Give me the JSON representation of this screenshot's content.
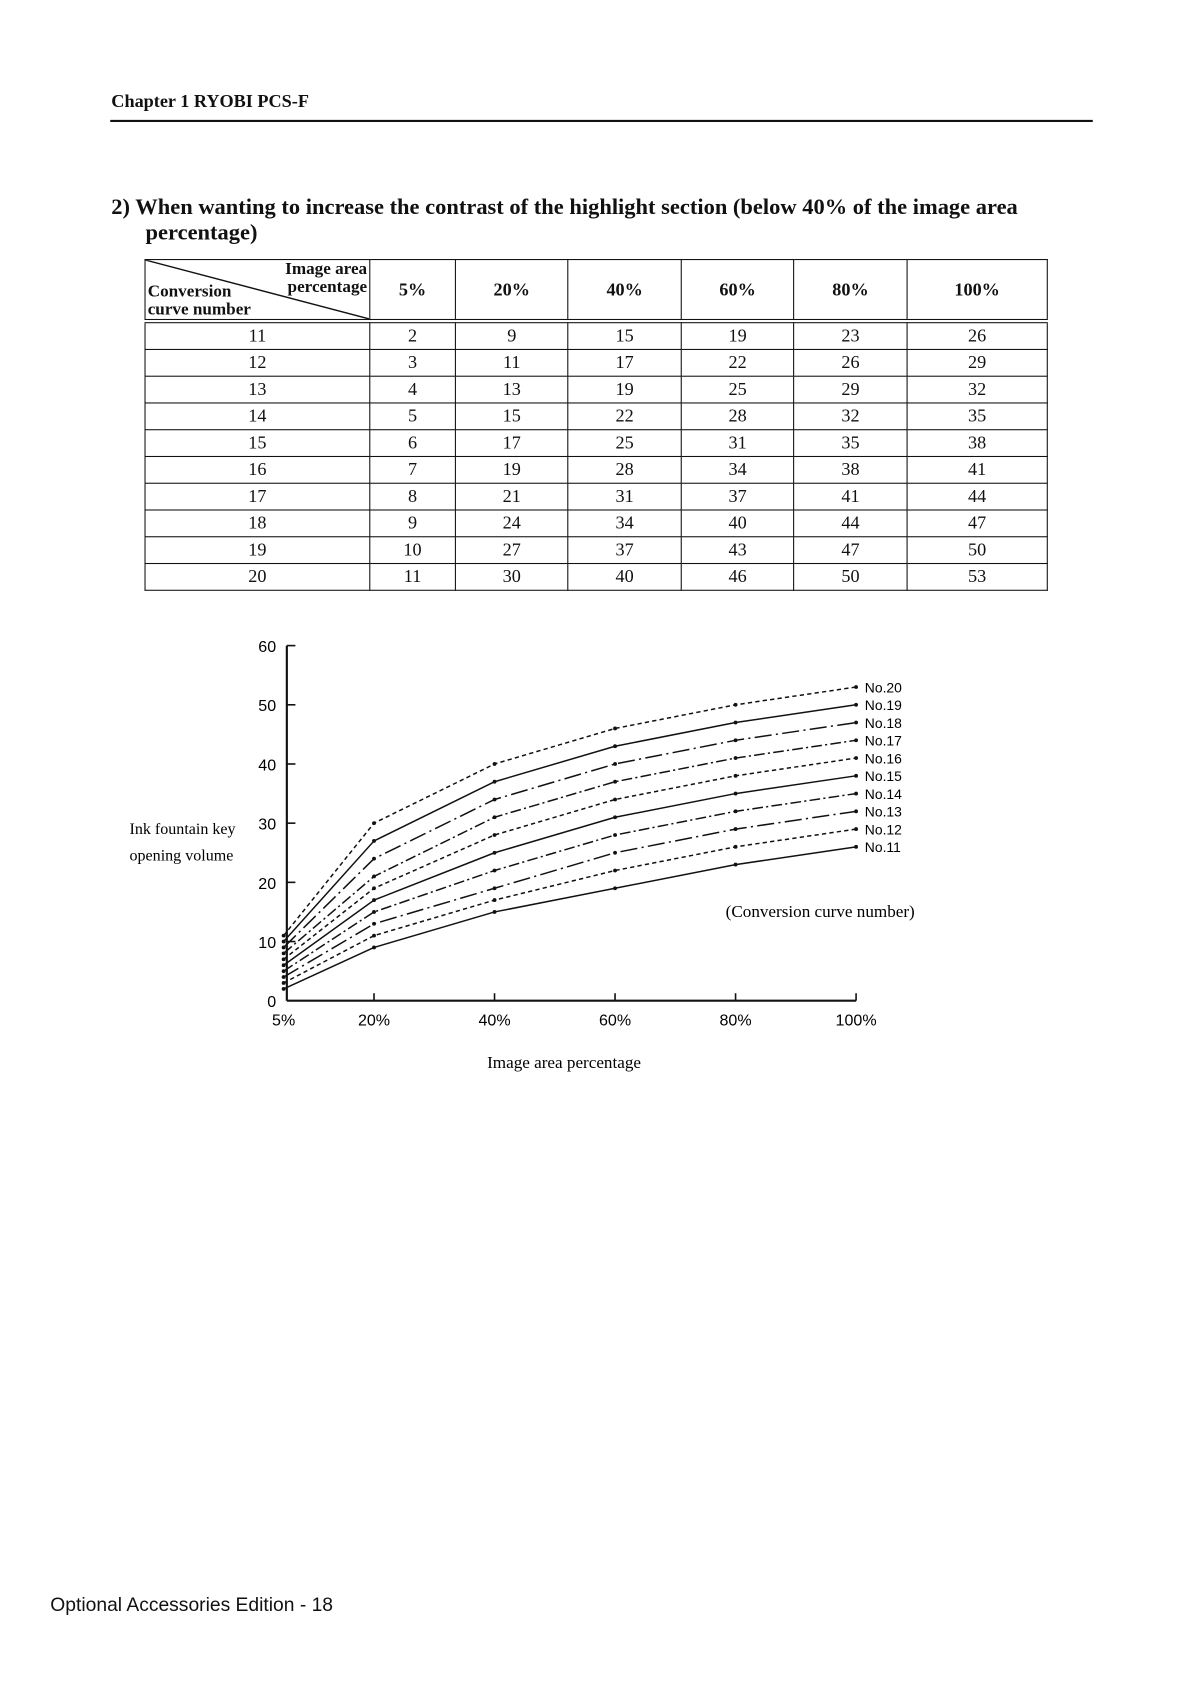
{
  "header": {
    "chapter": "Chapter 1  RYOBI PCS-F"
  },
  "section": {
    "line1": "2)  When wanting to increase the contrast of the highlight section (below 40% of the image area",
    "line2": "percentage)"
  },
  "table": {
    "corner_top": [
      "Image area",
      "percentage"
    ],
    "corner_bottom": [
      "Conversion",
      "curve number"
    ],
    "columns": [
      "5%",
      "20%",
      "40%",
      "60%",
      "80%",
      "100%"
    ],
    "rows": [
      [
        "11",
        "2",
        "9",
        "15",
        "19",
        "23",
        "26"
      ],
      [
        "12",
        "3",
        "11",
        "17",
        "22",
        "26",
        "29"
      ],
      [
        "13",
        "4",
        "13",
        "19",
        "25",
        "29",
        "32"
      ],
      [
        "14",
        "5",
        "15",
        "22",
        "28",
        "32",
        "35"
      ],
      [
        "15",
        "6",
        "17",
        "25",
        "31",
        "35",
        "38"
      ],
      [
        "16",
        "7",
        "19",
        "28",
        "34",
        "38",
        "41"
      ],
      [
        "17",
        "8",
        "21",
        "31",
        "37",
        "41",
        "44"
      ],
      [
        "18",
        "9",
        "24",
        "34",
        "40",
        "44",
        "47"
      ],
      [
        "19",
        "10",
        "27",
        "37",
        "43",
        "47",
        "50"
      ],
      [
        "20",
        "11",
        "30",
        "40",
        "46",
        "50",
        "53"
      ]
    ]
  },
  "chart_data": {
    "type": "line",
    "x": [
      5,
      20,
      40,
      60,
      80,
      100
    ],
    "x_tick_labels": [
      "5%",
      "20%",
      "40%",
      "60%",
      "80%",
      "100%"
    ],
    "y_ticks": [
      0,
      10,
      20,
      30,
      40,
      50,
      60
    ],
    "ylim": [
      0,
      60
    ],
    "xlabel": "Image area percentage",
    "ylabel": [
      "Ink fountain key",
      "opening volume"
    ],
    "annotation": "(Conversion curve number)",
    "series": [
      {
        "name": "No.11",
        "style": "solid",
        "values": [
          2,
          9,
          15,
          19,
          23,
          26
        ]
      },
      {
        "name": "No.12",
        "style": "dashed",
        "values": [
          3,
          11,
          17,
          22,
          26,
          29
        ]
      },
      {
        "name": "No.13",
        "style": "dashdot-long",
        "values": [
          4,
          13,
          19,
          25,
          29,
          32
        ]
      },
      {
        "name": "No.14",
        "style": "dashdot",
        "values": [
          5,
          15,
          22,
          28,
          32,
          35
        ]
      },
      {
        "name": "No.15",
        "style": "solid",
        "values": [
          6,
          17,
          25,
          31,
          35,
          38
        ]
      },
      {
        "name": "No.16",
        "style": "dashed",
        "values": [
          7,
          19,
          28,
          34,
          38,
          41
        ]
      },
      {
        "name": "No.17",
        "style": "dashdot",
        "values": [
          8,
          21,
          31,
          37,
          41,
          44
        ]
      },
      {
        "name": "No.18",
        "style": "dashdot-long",
        "values": [
          9,
          24,
          34,
          40,
          44,
          47
        ]
      },
      {
        "name": "No.19",
        "style": "solid",
        "values": [
          10,
          27,
          37,
          43,
          47,
          50
        ]
      },
      {
        "name": "No.20",
        "style": "dashed",
        "values": [
          11,
          30,
          40,
          46,
          50,
          53
        ]
      }
    ]
  },
  "footer": {
    "text": "Optional Accessories Edition - 18"
  }
}
